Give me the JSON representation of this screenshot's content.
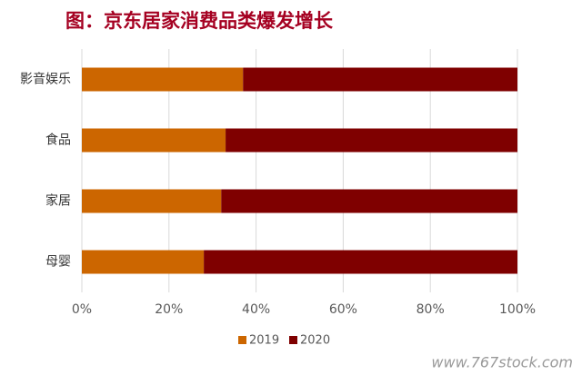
{
  "chart_data": {
    "type": "bar",
    "orientation": "horizontal",
    "stacked": true,
    "title": "图：京东居家消费品类爆发增长",
    "categories": [
      "影音娱乐",
      "食品",
      "家居",
      "母婴"
    ],
    "series": [
      {
        "name": "2019",
        "color": "#cc6600",
        "values": [
          37,
          33,
          32,
          28
        ]
      },
      {
        "name": "2020",
        "color": "#7f0000",
        "values": [
          63,
          67,
          68,
          72
        ]
      }
    ],
    "xlim": [
      0,
      100
    ],
    "xticks": [
      {
        "value": 0,
        "label": "0%"
      },
      {
        "value": 20,
        "label": "20%"
      },
      {
        "value": 40,
        "label": "40%"
      },
      {
        "value": 60,
        "label": "60%"
      },
      {
        "value": 80,
        "label": "80%"
      },
      {
        "value": 100,
        "label": "100%"
      }
    ],
    "grid": true,
    "legend": "bottom"
  },
  "watermark": "www.767stock.com"
}
